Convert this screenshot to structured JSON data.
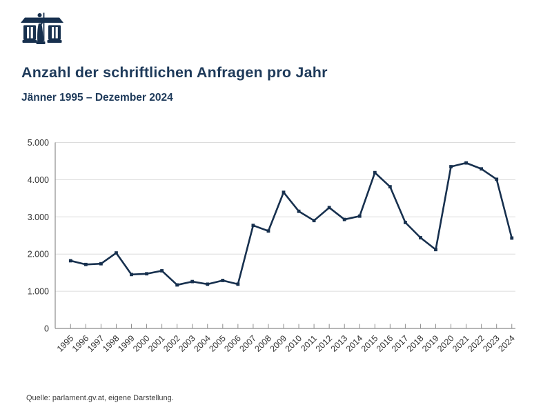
{
  "header": {
    "logo_name": "austrian-parliament-logo",
    "title": "Anzahl der schriftlichen Anfragen pro Jahr",
    "subtitle": "Jänner 1995 – Dezember 2024"
  },
  "chart_data": {
    "type": "line",
    "title": "Anzahl der schriftlichen Anfragen pro Jahr",
    "subtitle": "Jänner 1995 – Dezember 2024",
    "categories": [
      "1995",
      "1996",
      "1997",
      "1998",
      "1999",
      "2000",
      "2001",
      "2002",
      "2003",
      "2004",
      "2005",
      "2006",
      "2007",
      "2008",
      "2009",
      "2010",
      "2011",
      "2012",
      "2013",
      "2014",
      "2015",
      "2016",
      "2017",
      "2018",
      "2019",
      "2020",
      "2021",
      "2022",
      "2023",
      "2024"
    ],
    "values": [
      1820,
      1720,
      1740,
      2030,
      1450,
      1470,
      1550,
      1170,
      1260,
      1190,
      1290,
      1190,
      2770,
      2620,
      3660,
      3150,
      2900,
      3250,
      2930,
      3020,
      4190,
      3810,
      2850,
      2440,
      2120,
      4350,
      4450,
      4290,
      4010,
      2430
    ],
    "ylim": [
      0,
      5000
    ],
    "y_ticks": [
      0,
      1000,
      2000,
      3000,
      4000,
      5000
    ],
    "y_tick_labels": [
      "0",
      "1.000",
      "2.000",
      "3.000",
      "4.000",
      "5.000"
    ],
    "xlabel": "",
    "ylabel": "",
    "grid": "horizontal",
    "legend": "none",
    "marker": "square",
    "line_color": "#17304e"
  },
  "footer": {
    "source": "Quelle: parlament.gv.at, eigene Darstellung."
  },
  "colors": {
    "accent_navy": "#17304e",
    "title_navy": "#1e3a5a",
    "grid": "#dcdcdc",
    "axis": "#8c8c8c",
    "tick_label": "#333333",
    "source_text": "#3d3d3d",
    "background": "#ffffff"
  }
}
